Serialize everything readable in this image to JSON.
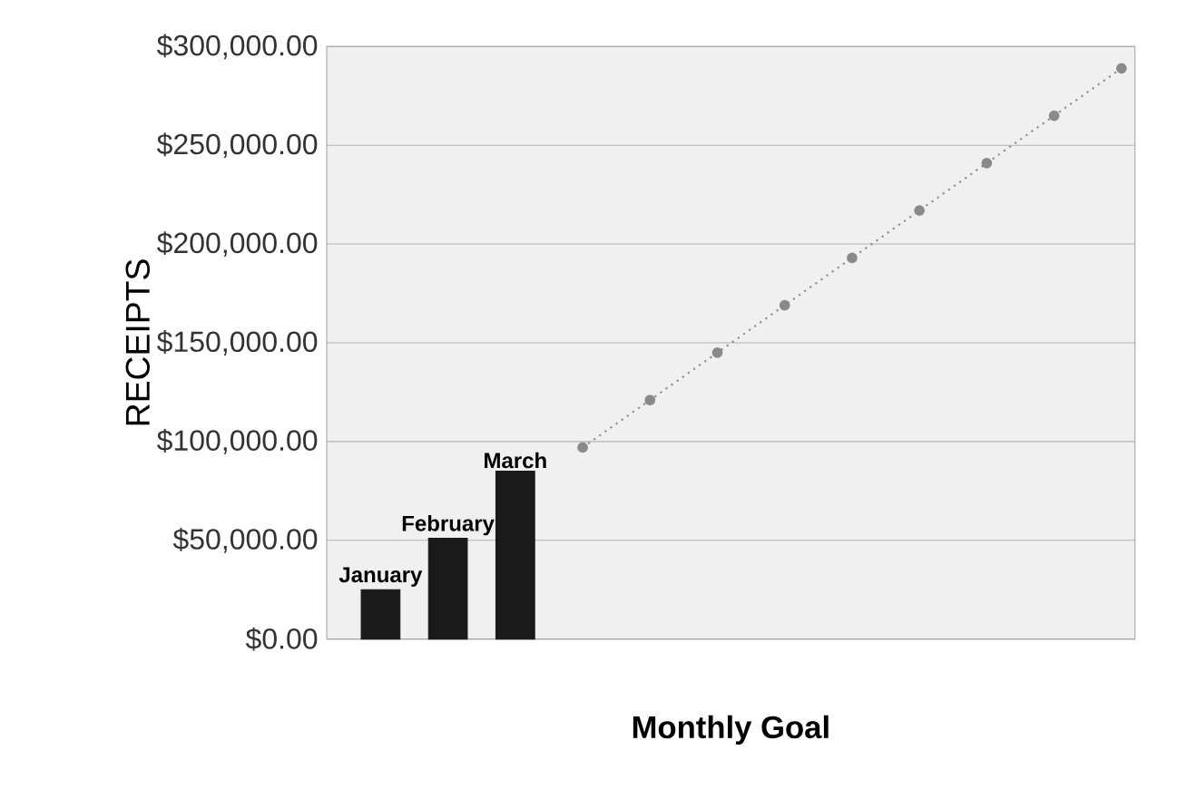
{
  "chart_data": {
    "type": "bar",
    "xlabel": "Monthly Goal",
    "ylabel": "RECEIPTS",
    "categories": [
      "January",
      "February",
      "March",
      null,
      null,
      null,
      null,
      null,
      null,
      null,
      null,
      null
    ],
    "series": [
      {
        "color": "#1a1a1a",
        "values": [
          25000,
          51000,
          85000,
          null,
          null,
          null,
          null,
          null,
          null,
          null,
          null,
          null
        ]
      },
      {
        "type": "line",
        "color": "#8a8a8a",
        "marker": "circle",
        "line_style": "dotted",
        "values": [
          null,
          null,
          null,
          97000,
          121000,
          145000,
          169000,
          193000,
          217000,
          241000,
          265000,
          289000
        ]
      }
    ],
    "ylim": [
      0,
      300000
    ],
    "yticks": [
      {
        "value": 0,
        "label": "$0.00"
      },
      {
        "value": 50000,
        "label": "$50,000.00"
      },
      {
        "value": 100000,
        "label": "$100,000.00"
      },
      {
        "value": 150000,
        "label": "$150,000.00"
      },
      {
        "value": 200000,
        "label": "$200,000.00"
      },
      {
        "value": 250000,
        "label": "$250,000.00"
      },
      {
        "value": 300000,
        "label": "$300,000.00"
      }
    ],
    "grid": "y"
  }
}
